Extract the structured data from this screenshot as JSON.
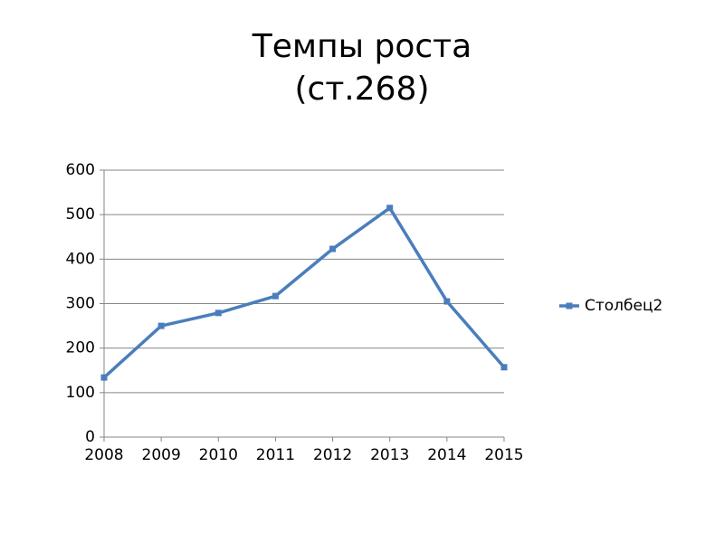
{
  "chart_data": {
    "type": "line",
    "title": "Темпы роста",
    "subtitle": "(ст.268)",
    "x": [
      2008,
      2009,
      2010,
      2011,
      2012,
      2013,
      2014,
      2015
    ],
    "series": [
      {
        "name": "Столбец2",
        "color": "#4a7ebb",
        "values": [
          134,
          250,
          279,
          317,
          423,
          515,
          305,
          157
        ]
      }
    ],
    "xlim": [
      2008,
      2015
    ],
    "xticks": [
      2008,
      2009,
      2010,
      2011,
      2012,
      2013,
      2014,
      2015
    ],
    "ylim": [
      0,
      600
    ],
    "yticks": [
      0,
      100,
      200,
      300,
      400,
      500,
      600
    ],
    "grid": true,
    "legend": "right"
  }
}
